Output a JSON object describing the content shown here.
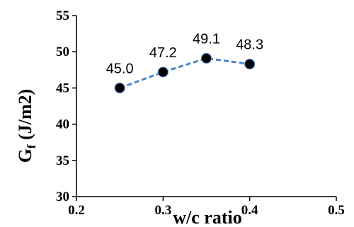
{
  "chart_data": {
    "type": "line",
    "xlabel": "w/c ratio",
    "ylabel": "(J/m2)",
    "ylabel_symbol": "G",
    "ylabel_subscript": "f",
    "xlim": [
      0.2,
      0.5
    ],
    "ylim": [
      30,
      55
    ],
    "xticks": [
      "0.2",
      "0.3",
      "0.4",
      "0.5"
    ],
    "yticks": [
      "30",
      "35",
      "40",
      "45",
      "50",
      "55"
    ],
    "x": [
      0.25,
      0.3,
      0.35,
      0.4
    ],
    "values": [
      45.0,
      47.2,
      49.1,
      48.3
    ],
    "data_labels": [
      "45.0",
      "47.2",
      "49.1",
      "48.3"
    ],
    "line_color": "#4a86c8",
    "marker_color": "#000000",
    "line_style": "dashed",
    "grid": false
  }
}
